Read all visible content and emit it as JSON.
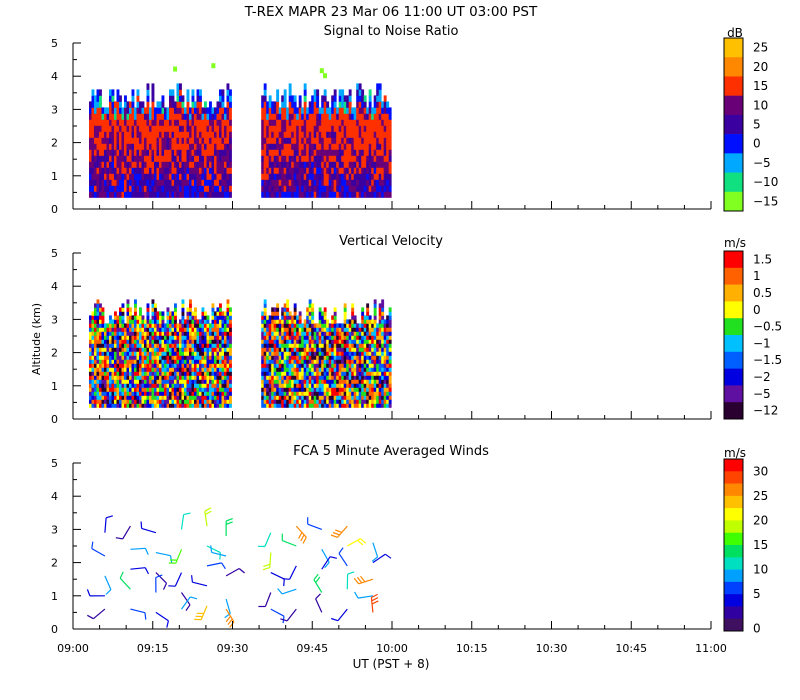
{
  "header": {
    "title": "T-REX   MAPR 23 Mar 06   11:00 UT   03:00   PST"
  },
  "axes": {
    "ylabel": "Altitude (km)",
    "xlabel": "UT  (PST + 8)",
    "x_ticks": [
      "09:00",
      "09:15",
      "09:30",
      "09:45",
      "10:00",
      "10:15",
      "10:30",
      "10:45",
      "11:00"
    ],
    "y_ticks": [
      "0",
      "1",
      "2",
      "3",
      "4",
      "5"
    ]
  },
  "chart_data": [
    {
      "id": "snr",
      "type": "heatmap",
      "title": "Signal to Noise Ratio",
      "unit": "dB",
      "xlim_hours": [
        9.0,
        11.0
      ],
      "ylim_km": [
        0,
        5
      ],
      "colorbar_labels": [
        "25",
        "20",
        "15",
        "10",
        "5",
        "0",
        "−5",
        "−10",
        "−15"
      ],
      "colorbar_colors": [
        "#ffc000",
        "#ff8800",
        "#ff3000",
        "#6a0078",
        "#3a00a0",
        "#0010ff",
        "#00a8ff",
        "#10e080",
        "#80ff20"
      ],
      "data_segments_hours": [
        [
          9.05,
          9.49
        ],
        [
          9.59,
          9.99
        ]
      ],
      "echo_top_km": 3.9,
      "echo_base_km": 0.35
    },
    {
      "id": "vv",
      "type": "heatmap",
      "title": "Vertical Velocity",
      "unit": "m/s",
      "xlim_hours": [
        9.0,
        11.0
      ],
      "ylim_km": [
        0,
        5
      ],
      "colorbar_labels": [
        "1.5",
        "1",
        "0.5",
        "0",
        "−0.5",
        "−1",
        "−1.5",
        "−2",
        "−5",
        "−12"
      ],
      "colorbar_colors": [
        "#ff0000",
        "#ff6000",
        "#ffb000",
        "#ffff00",
        "#20e020",
        "#00c0ff",
        "#0060ff",
        "#0000e0",
        "#6010a0",
        "#2a0030"
      ],
      "data_segments_hours": [
        [
          9.05,
          9.49
        ],
        [
          9.59,
          9.99
        ]
      ],
      "echo_top_km": 3.8,
      "echo_base_km": 0.35
    },
    {
      "id": "winds",
      "type": "scatter",
      "title": "FCA 5 Minute Averaged Winds",
      "unit": "m/s",
      "xlim_hours": [
        9.0,
        11.0
      ],
      "ylim_km": [
        0,
        5
      ],
      "colorbar_labels": [
        "30",
        "25",
        "20",
        "15",
        "10",
        "5",
        "0"
      ],
      "colorbar_colors": [
        "#ff0000",
        "#ff4400",
        "#ff8800",
        "#ffc000",
        "#ffff00",
        "#c0ff00",
        "#40ff00",
        "#00e060",
        "#00e0c0",
        "#00a0ff",
        "#0040ff",
        "#0000e0",
        "#3000a0",
        "#401060"
      ],
      "colorbar_max": 32,
      "barbs": [
        [
          9.1,
          2.9,
          5
        ],
        [
          9.1,
          2.2,
          8
        ],
        [
          9.1,
          1.6,
          11
        ],
        [
          9.1,
          1.0,
          6
        ],
        [
          9.1,
          0.6,
          3
        ],
        [
          9.18,
          3.1,
          2
        ],
        [
          9.18,
          2.4,
          9
        ],
        [
          9.18,
          1.8,
          4
        ],
        [
          9.18,
          1.2,
          14
        ],
        [
          9.18,
          0.6,
          7
        ],
        [
          9.26,
          2.9,
          4
        ],
        [
          9.26,
          2.3,
          10
        ],
        [
          9.26,
          1.7,
          3
        ],
        [
          9.26,
          1.1,
          8
        ],
        [
          9.26,
          0.5,
          5
        ],
        [
          9.34,
          3.0,
          12
        ],
        [
          9.34,
          2.4,
          18
        ],
        [
          9.34,
          1.7,
          6
        ],
        [
          9.34,
          1.1,
          2
        ],
        [
          9.34,
          0.6,
          9
        ],
        [
          9.42,
          3.1,
          20
        ],
        [
          9.42,
          2.5,
          13
        ],
        [
          9.42,
          1.9,
          7
        ],
        [
          9.42,
          1.3,
          4
        ],
        [
          9.42,
          0.7,
          25
        ],
        [
          9.48,
          2.8,
          16
        ],
        [
          9.48,
          2.2,
          9
        ],
        [
          9.48,
          1.6,
          3
        ],
        [
          9.48,
          0.9,
          11
        ],
        [
          9.48,
          0.6,
          28
        ],
        [
          9.62,
          2.9,
          12
        ],
        [
          9.62,
          2.3,
          19
        ],
        [
          9.62,
          1.7,
          6
        ],
        [
          9.62,
          1.1,
          3
        ],
        [
          9.62,
          0.6,
          8
        ],
        [
          9.7,
          3.1,
          26
        ],
        [
          9.7,
          2.5,
          14
        ],
        [
          9.7,
          1.9,
          5
        ],
        [
          9.7,
          1.2,
          9
        ],
        [
          9.7,
          0.6,
          2
        ],
        [
          9.78,
          3.0,
          7
        ],
        [
          9.78,
          2.4,
          11
        ],
        [
          9.78,
          1.8,
          4
        ],
        [
          9.78,
          1.1,
          16
        ],
        [
          9.78,
          0.5,
          3
        ],
        [
          9.86,
          3.1,
          27
        ],
        [
          9.86,
          2.5,
          22
        ],
        [
          9.86,
          1.9,
          8
        ],
        [
          9.86,
          1.2,
          12
        ],
        [
          9.86,
          0.6,
          5
        ],
        [
          9.94,
          2.6,
          10
        ],
        [
          9.94,
          2.0,
          4
        ],
        [
          9.94,
          1.5,
          26
        ],
        [
          9.94,
          1.0,
          9
        ],
        [
          9.94,
          0.5,
          29
        ]
      ]
    }
  ]
}
